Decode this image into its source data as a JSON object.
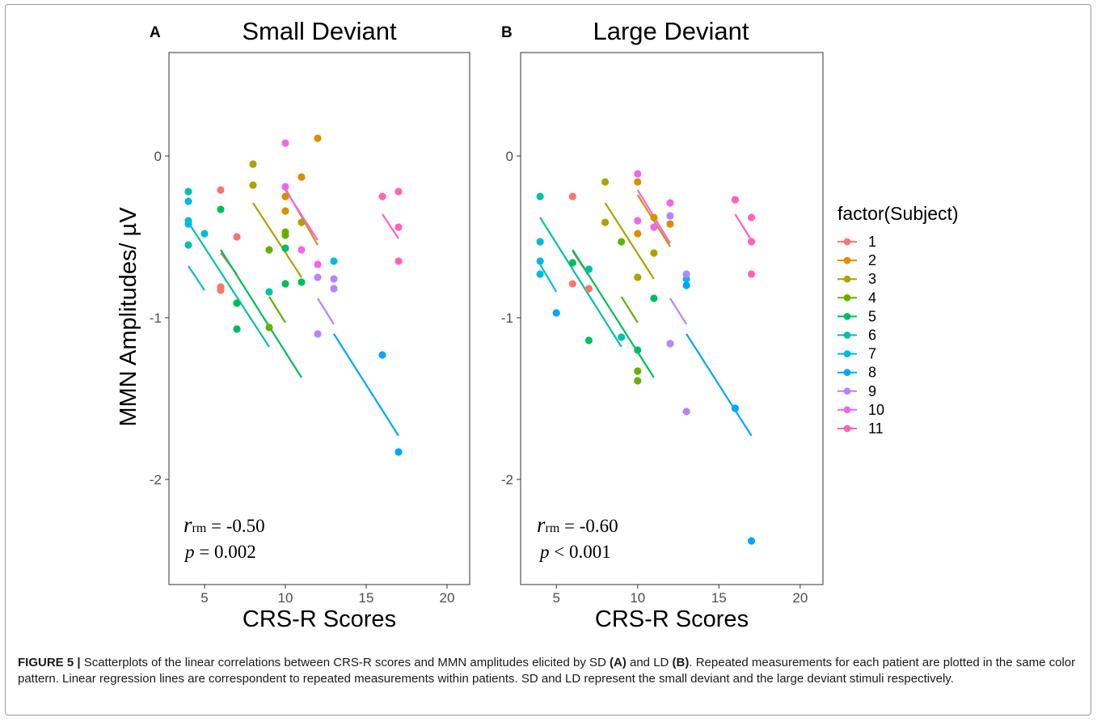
{
  "caption": {
    "lead": "FIGURE 5 |",
    "text_1": " Scatterplots of the linear correlations between CRS-R scores and MMN amplitudes elicited by SD ",
    "ref_a": "(A)",
    "text_2": " and LD ",
    "ref_b": "(B)",
    "text_3": ". Repeated measurements for each patient are plotted in the same color pattern. Linear regression lines are correspondent to repeated measurements within patients. SD and LD represent the small deviant and the large deviant stimuli respectively."
  },
  "legend": {
    "title": "factor(Subject)",
    "entries": [
      {
        "label": "1",
        "color": "#F8766D"
      },
      {
        "label": "2",
        "color": "#DB8E00"
      },
      {
        "label": "3",
        "color": "#AEA200"
      },
      {
        "label": "4",
        "color": "#64B200"
      },
      {
        "label": "5",
        "color": "#00BD5C"
      },
      {
        "label": "6",
        "color": "#00C1A7"
      },
      {
        "label": "7",
        "color": "#00BADE"
      },
      {
        "label": "8",
        "color": "#00A6FF"
      },
      {
        "label": "9",
        "color": "#B385FF"
      },
      {
        "label": "10",
        "color": "#EF67EB"
      },
      {
        "label": "11",
        "color": "#FF63B6"
      }
    ]
  },
  "chart_data": [
    {
      "type": "scatter",
      "panel_letter": "A",
      "title": "Small Deviant",
      "xlabel": "CRS-R Scores",
      "ylabel": "MMN Amplitudes/  µV",
      "xlim": [
        2.8,
        21.4
      ],
      "ylim": [
        -2.65,
        0.64
      ],
      "xticks": [
        5,
        10,
        15,
        20
      ],
      "yticks": [
        0,
        -1,
        -2
      ],
      "ytick_labels": [
        "0",
        "-1",
        "-2"
      ],
      "stat_r_symbol": "r",
      "stat_r_sub": "rm",
      "stat_r_value": " = -0.50",
      "stat_p_symbol": "p",
      "stat_p_value": " = 0.002",
      "series": [
        {
          "name": "1",
          "points": [
            [
              6,
              -0.21
            ],
            [
              6,
              -0.81
            ],
            [
              6,
              -0.83
            ],
            [
              7,
              -0.5
            ]
          ],
          "line": [
            [
              6,
              -0.6
            ],
            [
              7,
              -0.73
            ]
          ]
        },
        {
          "name": "2",
          "points": [
            [
              10,
              -0.25
            ],
            [
              10,
              -0.34
            ],
            [
              11,
              -0.13
            ],
            [
              12,
              0.11
            ]
          ],
          "line": [
            [
              10,
              -0.2
            ],
            [
              12,
              -0.55
            ]
          ]
        },
        {
          "name": "3",
          "points": [
            [
              8,
              -0.05
            ],
            [
              8,
              -0.18
            ],
            [
              11,
              -0.41
            ]
          ],
          "line": [
            [
              8,
              -0.29
            ],
            [
              11,
              -0.75
            ]
          ]
        },
        {
          "name": "4",
          "points": [
            [
              9,
              -0.58
            ],
            [
              9,
              -1.06
            ],
            [
              10,
              -0.47
            ],
            [
              10,
              -0.49
            ]
          ],
          "line": [
            [
              9,
              -0.87
            ],
            [
              10,
              -1.03
            ]
          ]
        },
        {
          "name": "5",
          "points": [
            [
              6,
              -0.33
            ],
            [
              7,
              -0.91
            ],
            [
              7,
              -1.07
            ],
            [
              10,
              -0.57
            ],
            [
              10,
              -0.79
            ],
            [
              11,
              -0.78
            ]
          ],
          "line": [
            [
              6,
              -0.58
            ],
            [
              11,
              -1.37
            ]
          ]
        },
        {
          "name": "6",
          "points": [
            [
              4,
              -0.22
            ],
            [
              4,
              -0.55
            ],
            [
              9,
              -0.84
            ]
          ],
          "line": [
            [
              4,
              -0.41
            ],
            [
              9,
              -1.18
            ]
          ]
        },
        {
          "name": "7",
          "points": [
            [
              4,
              -0.28
            ],
            [
              4,
              -0.4
            ],
            [
              4,
              -0.42
            ],
            [
              5,
              -0.48
            ],
            [
              13,
              -0.65
            ]
          ],
          "line": [
            [
              4,
              -0.68
            ],
            [
              5,
              -0.83
            ]
          ]
        },
        {
          "name": "8",
          "points": [
            [
              16,
              -1.23
            ],
            [
              17,
              -1.83
            ]
          ],
          "line": [
            [
              13,
              -1.1
            ],
            [
              17,
              -1.73
            ]
          ]
        },
        {
          "name": "9",
          "points": [
            [
              12,
              -0.75
            ],
            [
              12,
              -1.1
            ],
            [
              13,
              -0.76
            ],
            [
              13,
              -0.82
            ]
          ],
          "line": [
            [
              12,
              -0.88
            ],
            [
              13,
              -1.04
            ]
          ]
        },
        {
          "name": "10",
          "points": [
            [
              10,
              0.08
            ],
            [
              10,
              -0.19
            ],
            [
              11,
              -0.58
            ],
            [
              12,
              -0.67
            ]
          ],
          "line": [
            [
              10,
              -0.21
            ],
            [
              12,
              -0.52
            ]
          ]
        },
        {
          "name": "11",
          "points": [
            [
              16,
              -0.25
            ],
            [
              17,
              -0.22
            ],
            [
              17,
              -0.44
            ],
            [
              17,
              -0.65
            ]
          ],
          "line": [
            [
              16,
              -0.36
            ],
            [
              17,
              -0.51
            ]
          ]
        }
      ]
    },
    {
      "type": "scatter",
      "panel_letter": "B",
      "title": "Large Deviant",
      "xlabel": "CRS-R Scores",
      "ylabel": "",
      "xlim": [
        2.8,
        21.4
      ],
      "ylim": [
        -2.65,
        0.64
      ],
      "xticks": [
        5,
        10,
        15,
        20
      ],
      "yticks": [
        0,
        -1,
        -2
      ],
      "ytick_labels": [
        "0",
        "-1",
        "-2"
      ],
      "stat_r_symbol": "r",
      "stat_r_sub": "rm",
      "stat_r_value": " = -0.60",
      "stat_p_symbol": "p",
      "stat_p_value": " < 0.001",
      "series": [
        {
          "name": "1",
          "points": [
            [
              6,
              -0.25
            ],
            [
              6,
              -0.79
            ],
            [
              7,
              -0.82
            ]
          ],
          "line": [
            [
              6,
              -0.59
            ],
            [
              7,
              -0.74
            ]
          ]
        },
        {
          "name": "2",
          "points": [
            [
              10,
              -0.16
            ],
            [
              10,
              -0.48
            ],
            [
              11,
              -0.38
            ],
            [
              12,
              -0.42
            ]
          ],
          "line": [
            [
              10,
              -0.24
            ],
            [
              12,
              -0.56
            ]
          ]
        },
        {
          "name": "3",
          "points": [
            [
              8,
              -0.16
            ],
            [
              8,
              -0.41
            ],
            [
              10,
              -0.75
            ],
            [
              11,
              -0.6
            ]
          ],
          "line": [
            [
              8,
              -0.29
            ],
            [
              11,
              -0.76
            ]
          ]
        },
        {
          "name": "4",
          "points": [
            [
              9,
              -0.53
            ],
            [
              10,
              -1.33
            ],
            [
              10,
              -1.39
            ]
          ],
          "line": [
            [
              9,
              -0.87
            ],
            [
              10,
              -1.03
            ]
          ]
        },
        {
          "name": "5",
          "points": [
            [
              6,
              -0.66
            ],
            [
              7,
              -1.14
            ],
            [
              10,
              -1.2
            ],
            [
              11,
              -0.88
            ]
          ],
          "line": [
            [
              6,
              -0.58
            ],
            [
              11,
              -1.37
            ]
          ]
        },
        {
          "name": "6",
          "points": [
            [
              4,
              -0.25
            ],
            [
              7,
              -0.7
            ],
            [
              9,
              -1.12
            ]
          ],
          "line": [
            [
              4,
              -0.38
            ],
            [
              9,
              -1.18
            ]
          ]
        },
        {
          "name": "7",
          "points": [
            [
              4,
              -0.53
            ],
            [
              4,
              -0.65
            ],
            [
              4,
              -0.73
            ],
            [
              13,
              -0.76
            ]
          ],
          "line": [
            [
              4,
              -0.67
            ],
            [
              5,
              -0.84
            ]
          ]
        },
        {
          "name": "8",
          "points": [
            [
              5,
              -0.97
            ],
            [
              13,
              -0.8
            ],
            [
              16,
              -1.56
            ],
            [
              17,
              -2.38
            ]
          ],
          "line": [
            [
              13,
              -1.1
            ],
            [
              17,
              -1.73
            ]
          ]
        },
        {
          "name": "9",
          "points": [
            [
              12,
              -0.37
            ],
            [
              12,
              -1.16
            ],
            [
              13,
              -0.73
            ],
            [
              13,
              -1.58
            ]
          ],
          "line": [
            [
              12,
              -0.88
            ],
            [
              13,
              -1.04
            ]
          ]
        },
        {
          "name": "10",
          "points": [
            [
              10,
              -0.11
            ],
            [
              10,
              -0.4
            ],
            [
              11,
              -0.44
            ],
            [
              12,
              -0.29
            ]
          ],
          "line": [
            [
              10,
              -0.21
            ],
            [
              12,
              -0.54
            ]
          ]
        },
        {
          "name": "11",
          "points": [
            [
              16,
              -0.27
            ],
            [
              17,
              -0.38
            ],
            [
              17,
              -0.53
            ],
            [
              17,
              -0.73
            ]
          ],
          "line": [
            [
              16,
              -0.36
            ],
            [
              17,
              -0.52
            ]
          ]
        }
      ]
    }
  ]
}
